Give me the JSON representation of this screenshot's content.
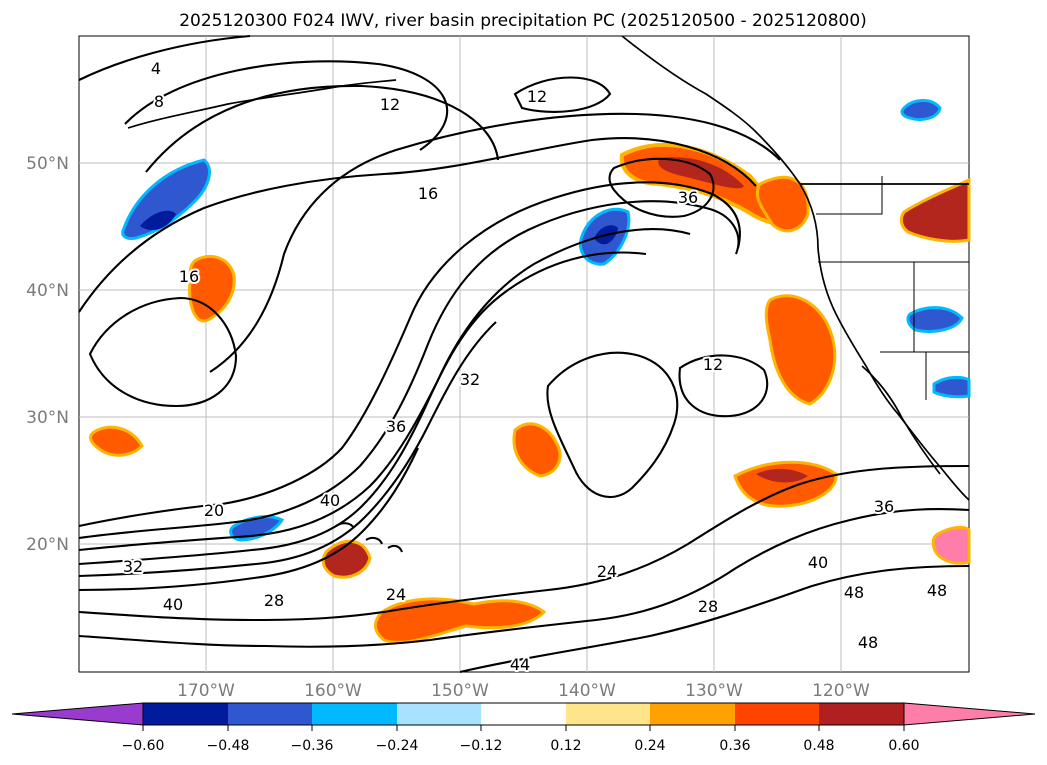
{
  "title": "2025120300 F024 IWV, river basin precipitation PC (2025120500 - 2025120800)",
  "map": {
    "lat_labels": [
      "50°N",
      "40°N",
      "30°N",
      "20°N"
    ],
    "lon_labels": [
      "170°W",
      "160°W",
      "150°W",
      "140°W",
      "130°W",
      "120°W"
    ],
    "contour_labels": [
      "4",
      "8",
      "12",
      "12",
      "12",
      "16",
      "16",
      "20",
      "24",
      "24",
      "28",
      "28",
      "32",
      "32",
      "36",
      "36",
      "36",
      "40",
      "40",
      "40",
      "44",
      "48",
      "48",
      "48"
    ]
  },
  "colorbar": {
    "tick_labels": [
      "−0.60",
      "−0.48",
      "−0.36",
      "−0.24",
      "−0.12",
      "0.12",
      "0.24",
      "0.36",
      "0.48",
      "0.60"
    ],
    "colors": [
      "#9a3bd0",
      "#001b9b",
      "#2f57cf",
      "#00b9ff",
      "#a7e2ff",
      "#ffffff",
      "#ffe58a",
      "#ffa100",
      "#ff4400",
      "#b02020",
      "#ff7ea9",
      "#ff7ea9"
    ]
  }
}
